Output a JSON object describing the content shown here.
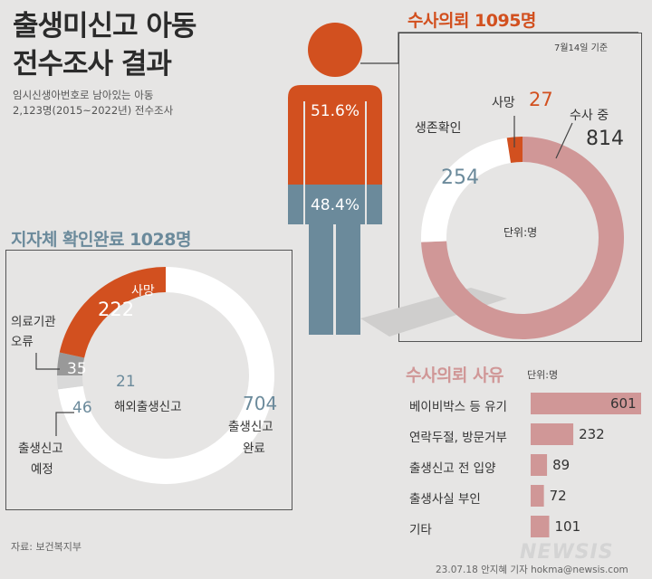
{
  "title_line1": "출생미신고 아동",
  "title_line2": "전수조사 결과",
  "subtitle_line1": "임시신생아번호로 남아있는 아동",
  "subtitle_line2": "2,123명(2015~2022년) 전수조사",
  "person": {
    "top_pct": "51.6%",
    "bottom_pct": "48.4%",
    "top_value": 51.6,
    "bottom_value": 48.4
  },
  "investigation": {
    "title": "수사의뢰 1095명",
    "date_note": "7월14일 기준",
    "unit_note": "단위:명",
    "labels": {
      "investigating": "수사 중",
      "dead": "사망",
      "alive": "생존확인"
    },
    "values_text": {
      "investigating": "814",
      "dead": "27",
      "alive": "254"
    }
  },
  "local": {
    "title": "지자체 확인완료 1028명",
    "labels": {
      "dead": "사망",
      "hospital_error_1": "의료기관",
      "hospital_error_2": "오류",
      "abroad": "해외출생신고",
      "planned_1": "출생신고",
      "planned_2": "예정",
      "completed_1": "출생신고",
      "completed_2": "완료"
    },
    "values_text": {
      "dead": "222",
      "hospital_error": "35",
      "abroad": "21",
      "planned": "46",
      "completed": "704"
    }
  },
  "reasons": {
    "title": "수사의뢰 사유",
    "unit_note": "단위:명",
    "items": [
      {
        "label": "베이비박스 등 유기",
        "value": "601"
      },
      {
        "label": "연락두절, 방문거부",
        "value": "232"
      },
      {
        "label": "출생신고 전 입양",
        "value": "89"
      },
      {
        "label": "출생사실 부인",
        "value": "72"
      },
      {
        "label": "기타",
        "value": "101"
      }
    ]
  },
  "colors": {
    "orange": "#d2501f",
    "slate": "#6b8a9b",
    "pink": "#d09797",
    "gray": "#999999",
    "lightgray": "#d9d9d9",
    "white": "#ffffff"
  },
  "source": "자료: 보건복지부",
  "credit": "23.07.18 안지혜 기자 hokma@newsis.com",
  "logo_text": "NEWSIS",
  "chart_data": [
    {
      "type": "pie",
      "title": "수사의뢰 1095명",
      "categories": [
        "수사 중",
        "사망",
        "생존확인"
      ],
      "values": [
        814,
        27,
        254
      ]
    },
    {
      "type": "pie",
      "title": "지자체 확인완료 1028명",
      "categories": [
        "출생신고 완료",
        "사망",
        "의료기관 오류",
        "해외출생신고",
        "출생신고 예정"
      ],
      "values": [
        704,
        222,
        35,
        21,
        46
      ]
    },
    {
      "type": "bar",
      "title": "수사의뢰 사유",
      "categories": [
        "베이비박스 등 유기",
        "연락두절, 방문거부",
        "출생신고 전 입양",
        "출생사실 부인",
        "기타"
      ],
      "values": [
        601,
        232,
        89,
        72,
        101
      ]
    },
    {
      "type": "bar",
      "categories": [
        "수사의뢰",
        "지자체 확인완료"
      ],
      "values": [
        51.6,
        48.4
      ]
    }
  ]
}
